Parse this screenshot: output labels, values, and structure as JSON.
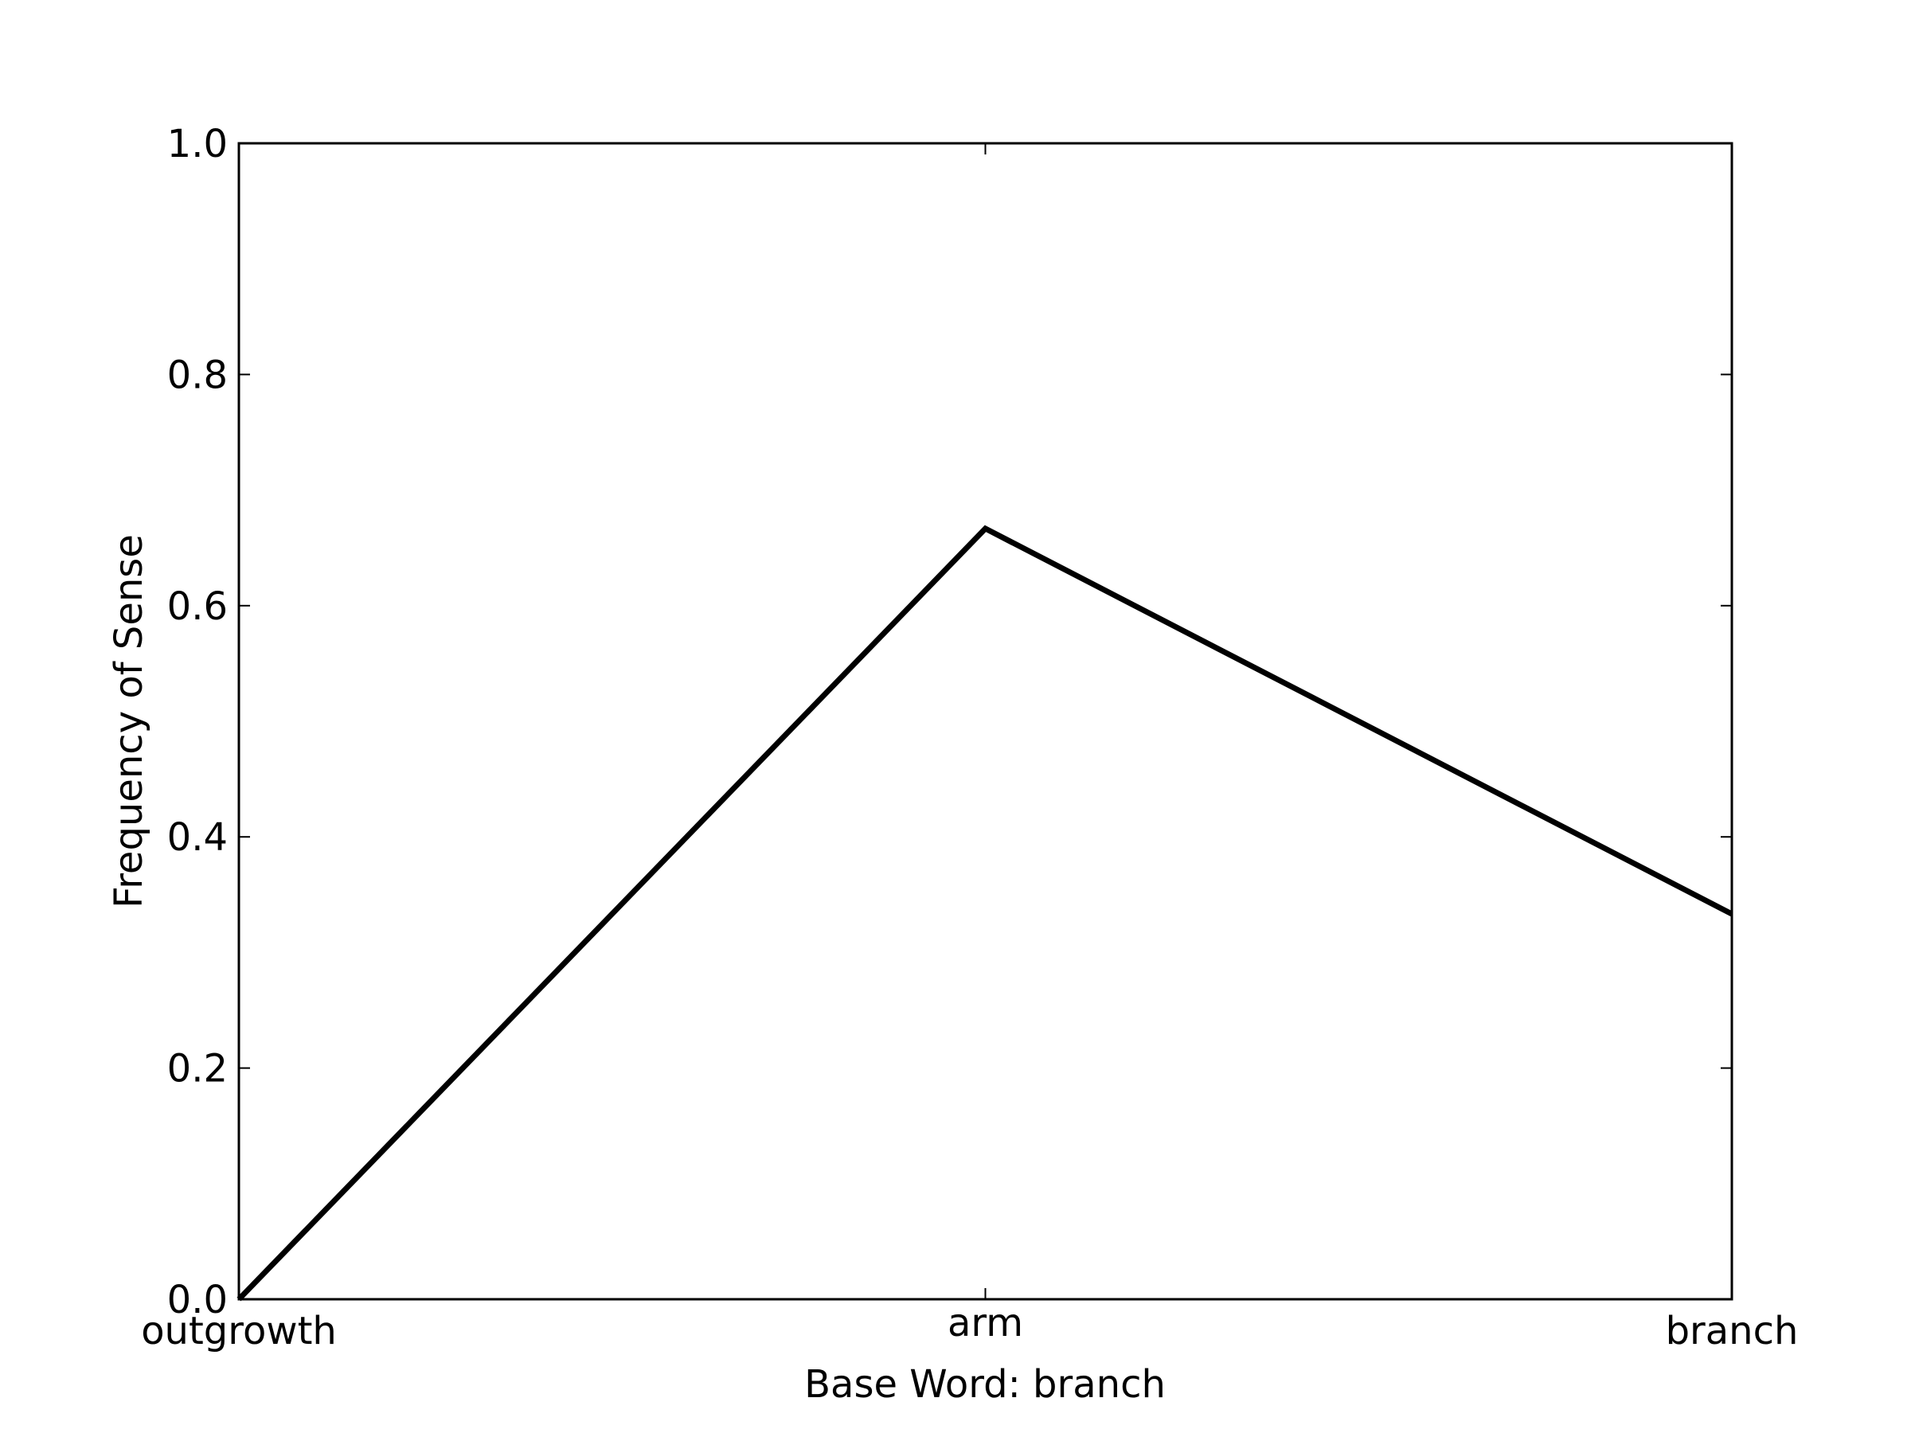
{
  "chart_data": {
    "type": "line",
    "title": "",
    "xlabel": "Base Word: branch",
    "ylabel": "Frequency of Sense",
    "categories": [
      "outgrowth",
      "arm",
      "branch"
    ],
    "series": [
      {
        "values": [
          0.0,
          0.6667,
          0.3333
        ]
      }
    ],
    "ylim": [
      0.0,
      1.0
    ],
    "yticks": [
      "0.0",
      "0.2",
      "0.4",
      "0.6",
      "0.8",
      "1.0"
    ],
    "grid": false,
    "line_color": "#000000"
  }
}
